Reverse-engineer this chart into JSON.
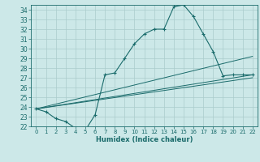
{
  "xlabel": "Humidex (Indice chaleur)",
  "ylabel": "",
  "bg_color": "#cce8e8",
  "grid_color": "#aacccc",
  "line_color": "#1a6b6b",
  "xlim": [
    -0.5,
    22.5
  ],
  "ylim": [
    22,
    34.5
  ],
  "xticks": [
    0,
    1,
    2,
    3,
    4,
    5,
    6,
    7,
    8,
    9,
    10,
    11,
    12,
    13,
    14,
    15,
    16,
    17,
    18,
    19,
    20,
    21,
    22
  ],
  "yticks": [
    22,
    23,
    24,
    25,
    26,
    27,
    28,
    29,
    30,
    31,
    32,
    33,
    34
  ],
  "main_series": {
    "x": [
      0,
      1,
      2,
      3,
      4,
      5,
      6,
      7,
      8,
      9,
      10,
      11,
      12,
      13,
      14,
      15,
      16,
      17,
      18,
      19,
      20,
      21,
      22
    ],
    "y": [
      23.8,
      23.5,
      22.8,
      22.5,
      21.8,
      21.6,
      23.2,
      27.3,
      27.5,
      29.0,
      30.5,
      31.5,
      32.0,
      32.0,
      34.3,
      34.5,
      33.3,
      31.5,
      29.7,
      27.2,
      27.3,
      27.3,
      27.3
    ]
  },
  "linear_lines": [
    {
      "x": [
        0,
        22
      ],
      "y": [
        23.8,
        27.3
      ]
    },
    {
      "x": [
        0,
        22
      ],
      "y": [
        23.8,
        29.2
      ]
    },
    {
      "x": [
        0,
        22
      ],
      "y": [
        23.8,
        27.0
      ]
    }
  ]
}
